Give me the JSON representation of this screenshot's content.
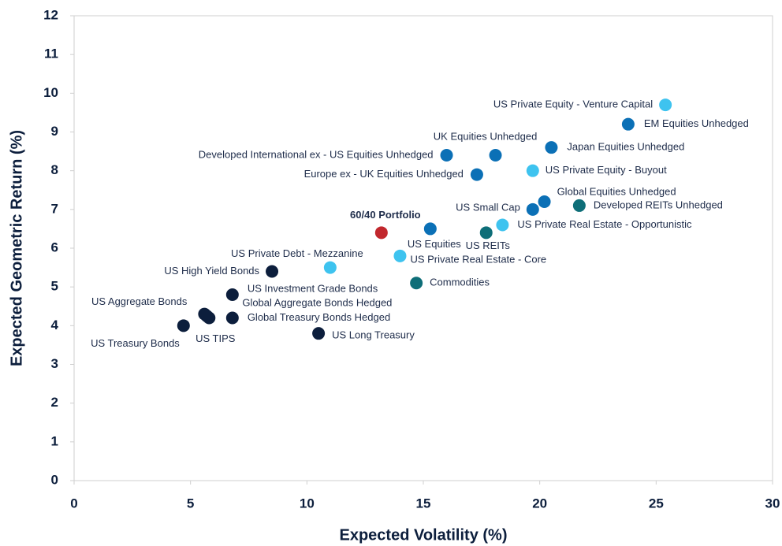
{
  "chart_data": {
    "type": "scatter",
    "xlabel": "Expected Volatility (%)",
    "ylabel": "Expected Geometric Return (%)",
    "xlim": [
      0,
      30
    ],
    "xticks": [
      0,
      5,
      10,
      15,
      20,
      25,
      30
    ],
    "ylim": [
      0,
      12
    ],
    "yticks": [
      0,
      1,
      2,
      3,
      4,
      5,
      6,
      7,
      8,
      9,
      10,
      11,
      12
    ],
    "points": [
      {
        "label": "US Private Equity - Venture Capital",
        "x": 25.4,
        "y": 9.7,
        "color": "#3ec3ef"
      },
      {
        "label": "EM Equities Unhedged",
        "x": 23.8,
        "y": 9.2,
        "color": "#0b70b6"
      },
      {
        "label": "Japan Equities Unhedged",
        "x": 20.5,
        "y": 8.6,
        "color": "#0b70b6"
      },
      {
        "label": "UK Equities Unhedged",
        "x": 18.1,
        "y": 8.4,
        "color": "#0b70b6"
      },
      {
        "label": "Developed International ex - US Equities Unhedged",
        "x": 16.0,
        "y": 8.4,
        "color": "#0b70b6"
      },
      {
        "label": "US Private Equity - Buyout",
        "x": 19.7,
        "y": 8.0,
        "color": "#3ec3ef"
      },
      {
        "label": "Europe ex - UK Equities Unhedged",
        "x": 17.3,
        "y": 7.9,
        "color": "#0b70b6"
      },
      {
        "label": "Global Equities Unhedged",
        "x": 20.2,
        "y": 7.2,
        "color": "#0b70b6"
      },
      {
        "label": "US Small Cap",
        "x": 19.7,
        "y": 7.0,
        "color": "#0b70b6"
      },
      {
        "label": "Developed REITs Unhedged",
        "x": 21.7,
        "y": 7.1,
        "color": "#0e6e78"
      },
      {
        "label": "US Private Real Estate - Opportunistic",
        "x": 18.4,
        "y": 6.6,
        "color": "#3ec3ef"
      },
      {
        "label": "60/40 Portfolio",
        "x": 13.2,
        "y": 6.4,
        "color": "#c1272d"
      },
      {
        "label": "US Equities",
        "x": 15.3,
        "y": 6.5,
        "color": "#0b70b6"
      },
      {
        "label": "US REITs",
        "x": 17.7,
        "y": 6.4,
        "color": "#0e6e78"
      },
      {
        "label": "US Private Real Estate - Core",
        "x": 14.0,
        "y": 5.8,
        "color": "#3ec3ef"
      },
      {
        "label": "US Private Debt - Mezzanine",
        "x": 11.0,
        "y": 5.5,
        "color": "#3ec3ef"
      },
      {
        "label": "US High Yield Bonds",
        "x": 8.5,
        "y": 5.4,
        "color": "#0c1e3c"
      },
      {
        "label": "Commodities",
        "x": 14.7,
        "y": 5.1,
        "color": "#0e6e78"
      },
      {
        "label": "US Investment Grade Bonds",
        "x": 6.8,
        "y": 4.8,
        "color": "#0c1e3c"
      },
      {
        "label": "US Aggregate Bonds",
        "x": 5.6,
        "y": 4.3,
        "color": "#0c1e3c"
      },
      {
        "label": "Global Aggregate Bonds Hedged",
        "x": 5.7,
        "y": 4.25,
        "color": "#0c1e3c"
      },
      {
        "label": "Global Treasury Bonds Hedged",
        "x": 6.8,
        "y": 4.2,
        "color": "#0c1e3c"
      },
      {
        "label": "US Treasury Bonds",
        "x": 4.7,
        "y": 4.0,
        "color": "#0c1e3c"
      },
      {
        "label": "US TIPS",
        "x": 5.8,
        "y": 4.2,
        "color": "#0c1e3c"
      },
      {
        "label": "US Long Treasury",
        "x": 10.5,
        "y": 3.8,
        "color": "#0c1e3c"
      }
    ]
  }
}
